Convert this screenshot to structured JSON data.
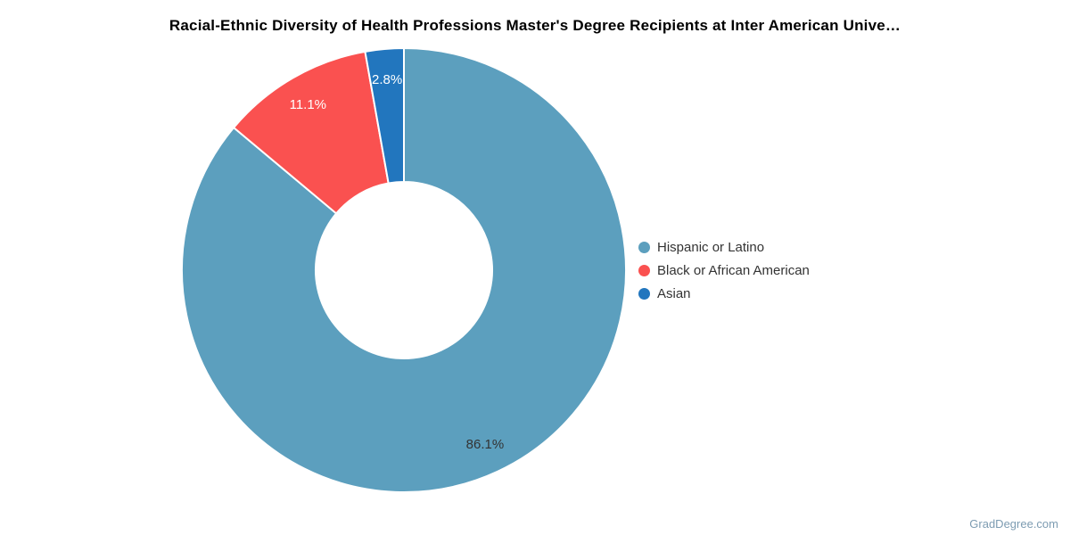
{
  "page": {
    "title": "Racial-Ethnic Diversity of Health Professions Master's Degree Recipients at Inter American Unive…",
    "watermark": "GradDegree.com",
    "background_color": "#ffffff"
  },
  "chart_data": {
    "type": "pie",
    "donut": true,
    "title": "Racial-Ethnic Diversity of Health Professions Master's Degree Recipients at Inter American Unive…",
    "legend_position": "right",
    "start_angle_deg": 0,
    "direction": "clockwise",
    "categories": [
      "Hispanic or Latino",
      "Black or African American",
      "Asian"
    ],
    "values": [
      86.1,
      11.1,
      2.8
    ],
    "slices": [
      {
        "name": "Hispanic or Latino",
        "value": 86.1,
        "label": "86.1%",
        "color": "#5C9FBE",
        "label_color": "#333333"
      },
      {
        "name": "Black or African American",
        "value": 11.1,
        "label": "11.1%",
        "color": "#FA5150",
        "label_color": "#ffffff"
      },
      {
        "name": "Asian",
        "value": 2.8,
        "label": "2.8%",
        "color": "#2276BE",
        "label_color": "#ffffff"
      }
    ],
    "slice_border_color": "#ffffff",
    "hole_color": "#ffffff"
  }
}
